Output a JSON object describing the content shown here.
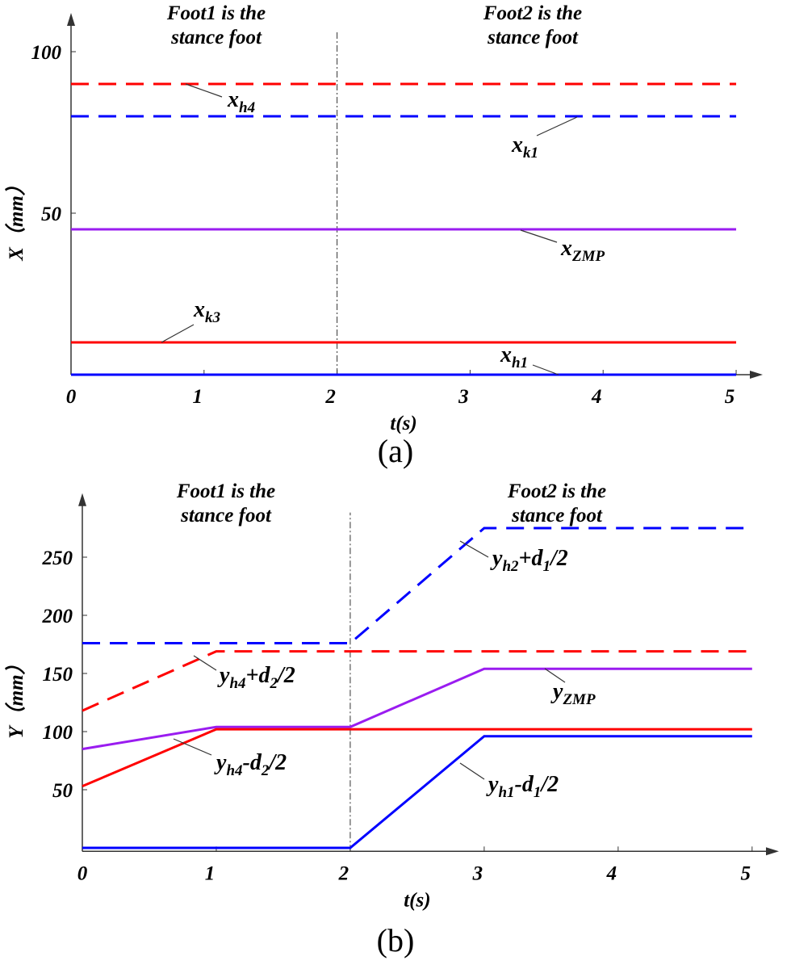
{
  "chart_data": [
    {
      "type": "line",
      "caption": "(a)",
      "xlabel": "t(s)",
      "ylabel": "X（mm）",
      "xlim": [
        0,
        5.2
      ],
      "ylim": [
        0,
        112
      ],
      "xticks": [
        0,
        1,
        2,
        3,
        4,
        5
      ],
      "yticks": [
        50,
        100
      ],
      "divider_x": 2,
      "annotations": [
        [
          "Foot1 is the",
          "stance foot"
        ],
        [
          "Foot2 is the",
          "stance foot"
        ]
      ],
      "series": [
        {
          "label_parts": [
            "x",
            "h4"
          ],
          "color": "#ff0000",
          "style": "dashed",
          "x": [
            0,
            5
          ],
          "values": [
            90,
            90
          ]
        },
        {
          "label_parts": [
            "x",
            "k1"
          ],
          "color": "#0000ff",
          "style": "dashed",
          "x": [
            0,
            5
          ],
          "values": [
            80,
            80
          ]
        },
        {
          "label_parts": [
            "x",
            "ZMP"
          ],
          "color": "#9a1cf0",
          "style": "solid",
          "x": [
            0,
            5
          ],
          "values": [
            45,
            45
          ]
        },
        {
          "label_parts": [
            "x",
            "k3"
          ],
          "color": "#ff0000",
          "style": "solid",
          "x": [
            0,
            5
          ],
          "values": [
            10,
            10
          ]
        },
        {
          "label_parts": [
            "x",
            "h1"
          ],
          "color": "#0000ff",
          "style": "solid",
          "x": [
            0,
            5
          ],
          "values": [
            0,
            0
          ]
        }
      ]
    },
    {
      "type": "line",
      "caption": "(b)",
      "xlabel": "t(s)",
      "ylabel": "Y（mm）",
      "xlim": [
        0,
        5.2
      ],
      "ylim": [
        -3,
        305
      ],
      "xticks": [
        0,
        1,
        2,
        3,
        4,
        5
      ],
      "yticks": [
        50,
        100,
        150,
        200,
        250
      ],
      "divider_x": 2,
      "annotations": [
        [
          "Foot1 is the",
          "stance foot"
        ],
        [
          "Foot2 is the",
          "stance foot"
        ]
      ],
      "series": [
        {
          "label_parts": [
            "y",
            "h2",
            "+d",
            "1",
            "/2"
          ],
          "color": "#0000ff",
          "style": "dashed",
          "x": [
            0,
            2,
            3,
            5
          ],
          "values": [
            176,
            176,
            275,
            275
          ]
        },
        {
          "label_parts": [
            "y",
            "h4",
            "+d",
            "2",
            "/2"
          ],
          "color": "#ff0000",
          "style": "dashed",
          "x": [
            0,
            1,
            5
          ],
          "values": [
            118,
            169,
            169
          ]
        },
        {
          "label_parts": [
            "y",
            "ZMP"
          ],
          "color": "#9a1cf0",
          "style": "solid",
          "x": [
            0,
            1,
            2,
            3,
            5
          ],
          "values": [
            85,
            104,
            104,
            154,
            154
          ]
        },
        {
          "label_parts": [
            "y",
            "h4",
            "-d",
            "2",
            "/2"
          ],
          "color": "#ff0000",
          "style": "solid",
          "x": [
            0,
            1,
            5
          ],
          "values": [
            53,
            102,
            102
          ]
        },
        {
          "label_parts": [
            "y",
            "h1",
            "-d",
            "1",
            "/2"
          ],
          "color": "#0000ff",
          "style": "solid",
          "x": [
            0,
            2,
            3,
            5
          ],
          "values": [
            0,
            0,
            96,
            96
          ]
        }
      ]
    }
  ]
}
